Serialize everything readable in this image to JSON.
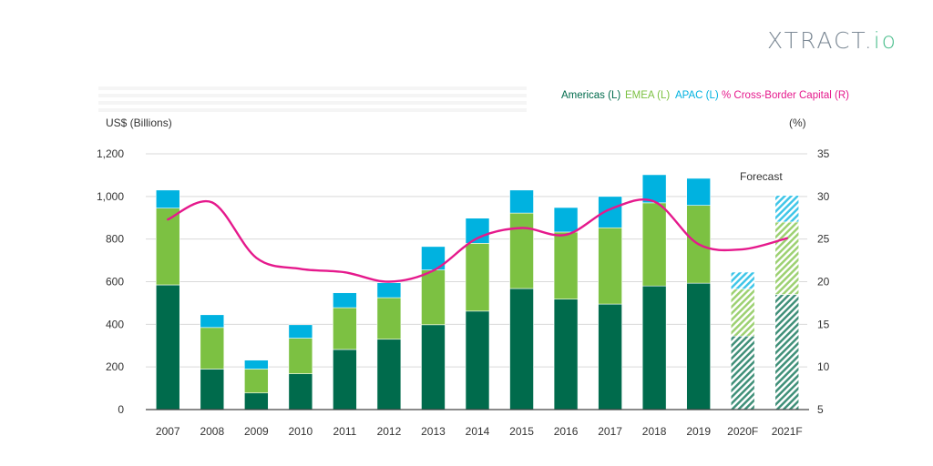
{
  "brand": {
    "logo_main": "XTRACT.",
    "logo_suffix": "io"
  },
  "chart_data": {
    "type": "bar",
    "stacked": true,
    "categories": [
      "2007",
      "2008",
      "2009",
      "2010",
      "2011",
      "2012",
      "2013",
      "2014",
      "2015",
      "2016",
      "2017",
      "2018",
      "2019",
      "2020F",
      "2021F"
    ],
    "forecast_categories": [
      "2020F",
      "2021F"
    ],
    "forecast_label": "Forecast",
    "ylabel": "US$ (Billions)",
    "y2label": "(%)",
    "ylim": [
      0,
      1200
    ],
    "y2lim": [
      5,
      35
    ],
    "yticks": [
      "0",
      "200",
      "400",
      "600",
      "800",
      "1,000",
      "1,200"
    ],
    "y2ticks": [
      "5",
      "10",
      "15",
      "20",
      "25",
      "30",
      "35"
    ],
    "grid": true,
    "legend_position": "top-right",
    "series": [
      {
        "name": "Americas (L)",
        "axis": "left",
        "type": "bar",
        "color": "#006b4c",
        "values": [
          585,
          190,
          78,
          168,
          282,
          330,
          398,
          462,
          568,
          518,
          495,
          580,
          593,
          345,
          540
        ]
      },
      {
        "name": "EMEA (L)",
        "axis": "left",
        "type": "bar",
        "color": "#7cc142",
        "values": [
          360,
          195,
          112,
          167,
          196,
          195,
          257,
          318,
          354,
          315,
          358,
          390,
          365,
          220,
          340
        ]
      },
      {
        "name": "APAC (L)",
        "axis": "left",
        "type": "bar",
        "color": "#00b2e0",
        "values": [
          85,
          60,
          42,
          63,
          70,
          70,
          110,
          118,
          108,
          115,
          147,
          132,
          127,
          80,
          125
        ]
      },
      {
        "name": "% Cross-Border Capital (R)",
        "axis": "right",
        "type": "line",
        "color": "#e5198c",
        "values": [
          27.3,
          29.3,
          22.8,
          21.5,
          21.1,
          20.0,
          21.3,
          25.1,
          26.3,
          25.5,
          28.5,
          29.4,
          24.4,
          23.8,
          25.1
        ]
      }
    ]
  }
}
